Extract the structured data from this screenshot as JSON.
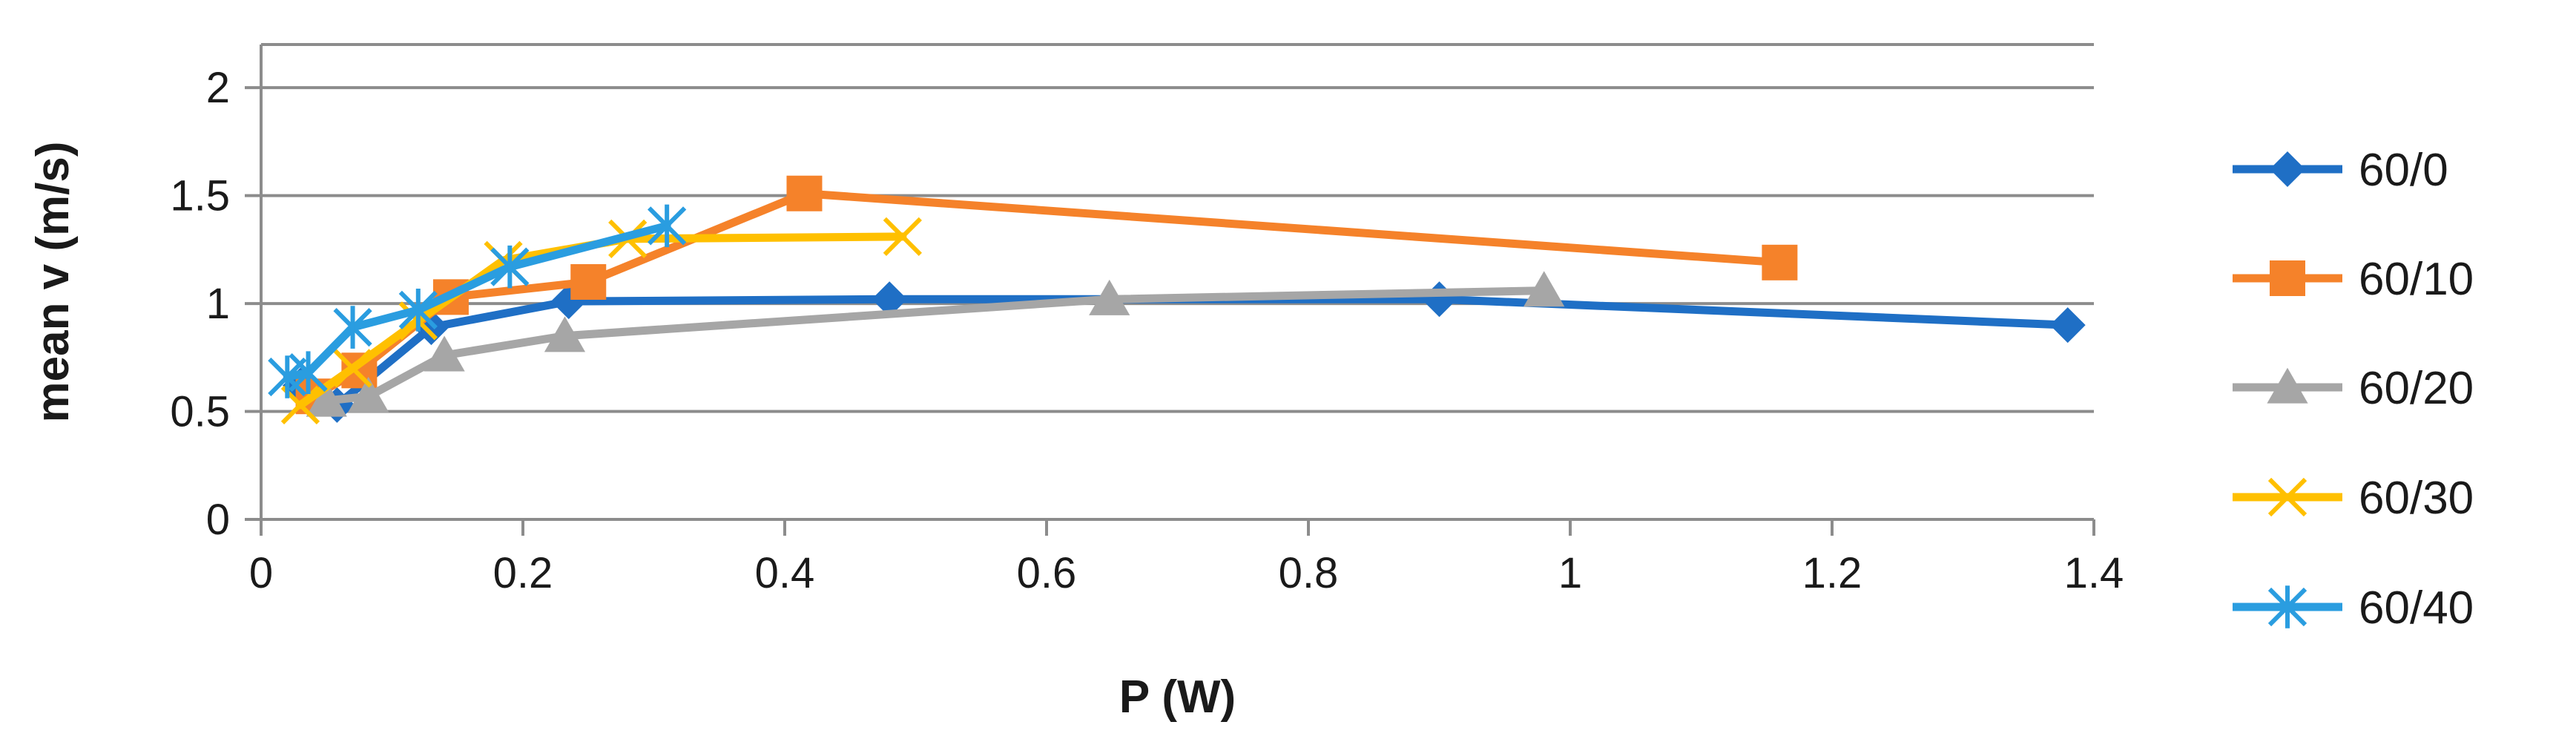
{
  "chart_data": {
    "type": "line",
    "title": "",
    "xlabel": "P (W)",
    "ylabel": "mean v (m/s)",
    "xlim": [
      0,
      1.4
    ],
    "ylim": [
      0,
      2.2
    ],
    "xticks": [
      0,
      0.2,
      0.4,
      0.6,
      0.8,
      1.0,
      1.2,
      1.4
    ],
    "xtick_labels": [
      "0",
      "0.2",
      "0.4",
      "0.6",
      "0.8",
      "1",
      "1.2",
      "1.4"
    ],
    "yticks": [
      0,
      0.5,
      1.0,
      1.5,
      2.0
    ],
    "ytick_labels": [
      "0",
      "0.5",
      "1",
      "1.5",
      "2"
    ],
    "grid": "horizontal",
    "legend_position": "right",
    "series": [
      {
        "name": "60/0",
        "color": "#1f6fc5",
        "marker": "diamond",
        "x": [
          0.03,
          0.058,
          0.13,
          0.235,
          0.48,
          0.9,
          1.38
        ],
        "y": [
          0.62,
          0.53,
          0.89,
          1.01,
          1.02,
          1.02,
          0.9
        ]
      },
      {
        "name": "60/10",
        "color": "#f5822a",
        "marker": "square",
        "x": [
          0.04,
          0.075,
          0.145,
          0.25,
          0.415,
          1.16
        ],
        "y": [
          0.57,
          0.69,
          1.03,
          1.1,
          1.51,
          1.19
        ]
      },
      {
        "name": "60/20",
        "color": "#a6a6a6",
        "marker": "triangle",
        "x": [
          0.05,
          0.082,
          0.14,
          0.232,
          0.648,
          0.98
        ],
        "y": [
          0.55,
          0.57,
          0.76,
          0.85,
          1.02,
          1.06
        ]
      },
      {
        "name": "60/30",
        "color": "#ffc000",
        "marker": "x",
        "x": [
          0.03,
          0.07,
          0.12,
          0.185,
          0.28,
          0.49
        ],
        "y": [
          0.53,
          0.7,
          0.92,
          1.2,
          1.3,
          1.31
        ]
      },
      {
        "name": "60/40",
        "color": "#2a9de0",
        "marker": "star",
        "x": [
          0.02,
          0.036,
          0.07,
          0.12,
          0.19,
          0.31
        ],
        "y": [
          0.66,
          0.68,
          0.89,
          0.97,
          1.17,
          1.36
        ]
      }
    ]
  }
}
